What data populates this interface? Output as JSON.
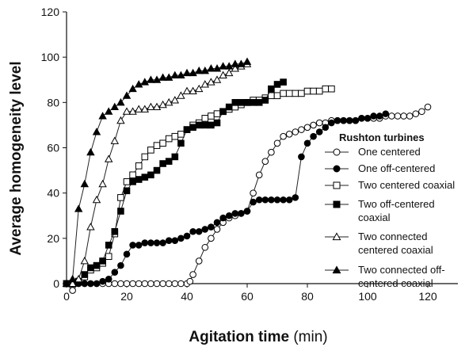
{
  "chart_data": {
    "type": "line",
    "xlabel": "Agitation time",
    "xlabel_unit": "(min)",
    "ylabel": "Average homogeneity level",
    "xlim": [
      0,
      130
    ],
    "ylim": [
      0,
      120
    ],
    "xticks": [
      "0",
      "20",
      "40",
      "60",
      "80",
      "100",
      "120"
    ],
    "yticks": [
      "0",
      "20",
      "40",
      "60",
      "80",
      "100",
      "120"
    ],
    "grid": false,
    "legend_title": "Rushton turbines",
    "legend_position": "right",
    "series": [
      {
        "name": "One centered",
        "marker": "circle-open",
        "x": [
          0,
          2,
          4,
          6,
          8,
          10,
          12,
          14,
          16,
          18,
          20,
          22,
          24,
          26,
          28,
          30,
          32,
          34,
          36,
          38,
          40,
          41,
          42,
          44,
          46,
          48,
          50,
          52,
          54,
          56,
          58,
          60,
          62,
          64,
          66,
          68,
          70,
          72,
          74,
          76,
          78,
          80,
          82,
          84,
          86,
          88,
          90,
          92,
          94,
          96,
          98,
          100,
          102,
          104,
          106,
          108,
          110,
          112,
          114,
          116,
          118,
          120
        ],
        "y": [
          0,
          -3,
          0,
          0,
          0,
          0,
          0,
          0,
          0,
          0,
          0,
          0,
          0,
          0,
          0,
          0,
          0,
          0,
          0,
          0,
          0,
          1,
          4,
          10,
          16,
          20,
          24,
          27,
          29,
          30,
          31,
          32,
          40,
          48,
          54,
          58,
          62,
          65,
          66,
          67,
          68,
          69,
          70,
          71,
          71,
          72,
          72,
          72,
          72,
          72,
          73,
          73,
          73,
          73,
          74,
          74,
          74,
          74,
          74,
          75,
          76,
          78
        ]
      },
      {
        "name": "One off-centered",
        "marker": "circle-filled",
        "x": [
          0,
          2,
          4,
          6,
          8,
          10,
          12,
          14,
          16,
          18,
          20,
          22,
          24,
          26,
          28,
          30,
          32,
          34,
          36,
          38,
          40,
          42,
          44,
          46,
          48,
          50,
          52,
          54,
          56,
          58,
          60,
          62,
          64,
          66,
          68,
          70,
          72,
          74,
          76,
          78,
          80,
          82,
          84,
          86,
          88,
          90,
          92,
          94,
          96,
          98,
          100,
          102,
          104,
          106
        ],
        "y": [
          0,
          0,
          0,
          0,
          0,
          0,
          1,
          2,
          5,
          8,
          13,
          17,
          17,
          18,
          18,
          18,
          18,
          19,
          19,
          20,
          21,
          23,
          23,
          24,
          25,
          27,
          29,
          30,
          31,
          31,
          32,
          36,
          37,
          37,
          37,
          37,
          37,
          37,
          38,
          56,
          62,
          65,
          67,
          69,
          71,
          72,
          72,
          72,
          72,
          73,
          73,
          74,
          74,
          75
        ]
      },
      {
        "name": "Two centered coaxial",
        "marker": "square-open",
        "x": [
          0,
          2,
          4,
          6,
          8,
          10,
          12,
          14,
          16,
          18,
          20,
          22,
          24,
          26,
          28,
          30,
          32,
          34,
          36,
          38,
          40,
          42,
          44,
          46,
          48,
          50,
          52,
          54,
          56,
          58,
          60,
          62,
          64,
          66,
          68,
          70,
          72,
          74,
          76,
          78,
          80,
          82,
          84,
          86,
          88
        ],
        "y": [
          0,
          0,
          1,
          3,
          6,
          7,
          9,
          12,
          22,
          38,
          45,
          48,
          52,
          56,
          59,
          61,
          62,
          64,
          65,
          66,
          68,
          70,
          71,
          73,
          74,
          75,
          76,
          77,
          78,
          79,
          80,
          81,
          81,
          82,
          83,
          83,
          84,
          84,
          84,
          84,
          85,
          85,
          85,
          86,
          86
        ]
      },
      {
        "name": "Two off-centered coaxial",
        "marker": "square-filled",
        "x": [
          0,
          2,
          4,
          6,
          8,
          10,
          12,
          14,
          16,
          18,
          20,
          22,
          24,
          26,
          28,
          30,
          32,
          34,
          36,
          38,
          40,
          42,
          44,
          46,
          48,
          50,
          52,
          54,
          56,
          58,
          60,
          62,
          64,
          66,
          68,
          70,
          72
        ],
        "y": [
          0,
          0,
          1,
          4,
          7,
          8,
          10,
          17,
          23,
          32,
          41,
          45,
          46,
          47,
          48,
          50,
          53,
          54,
          56,
          62,
          68,
          69,
          70,
          70,
          70,
          71,
          76,
          78,
          80,
          80,
          80,
          80,
          80,
          81,
          86,
          88,
          89
        ]
      },
      {
        "name": "Two connected centered coaxial",
        "marker": "triangle-open",
        "x": [
          0,
          2,
          4,
          6,
          8,
          10,
          12,
          14,
          16,
          18,
          20,
          22,
          24,
          26,
          28,
          30,
          32,
          34,
          36,
          38,
          40,
          42,
          44,
          46,
          48,
          50,
          52,
          54,
          56,
          58,
          60
        ],
        "y": [
          0,
          0,
          2,
          10,
          25,
          37,
          44,
          55,
          63,
          72,
          76,
          76,
          77,
          77,
          78,
          78,
          79,
          80,
          81,
          83,
          85,
          85,
          86,
          88,
          89,
          90,
          92,
          93,
          95,
          96,
          97
        ]
      },
      {
        "name": "Two connected off-centered coaxial",
        "marker": "triangle-filled",
        "x": [
          0,
          2,
          4,
          6,
          8,
          10,
          12,
          14,
          16,
          18,
          20,
          22,
          24,
          26,
          28,
          30,
          32,
          34,
          36,
          38,
          40,
          42,
          44,
          46,
          48,
          50,
          52,
          54,
          56,
          58,
          60
        ],
        "y": [
          0,
          2,
          33,
          44,
          58,
          67,
          74,
          76,
          78,
          80,
          83,
          86,
          88,
          89,
          90,
          90,
          91,
          91,
          92,
          92,
          93,
          93,
          94,
          94,
          95,
          95,
          96,
          96,
          97,
          97,
          98
        ]
      }
    ]
  }
}
